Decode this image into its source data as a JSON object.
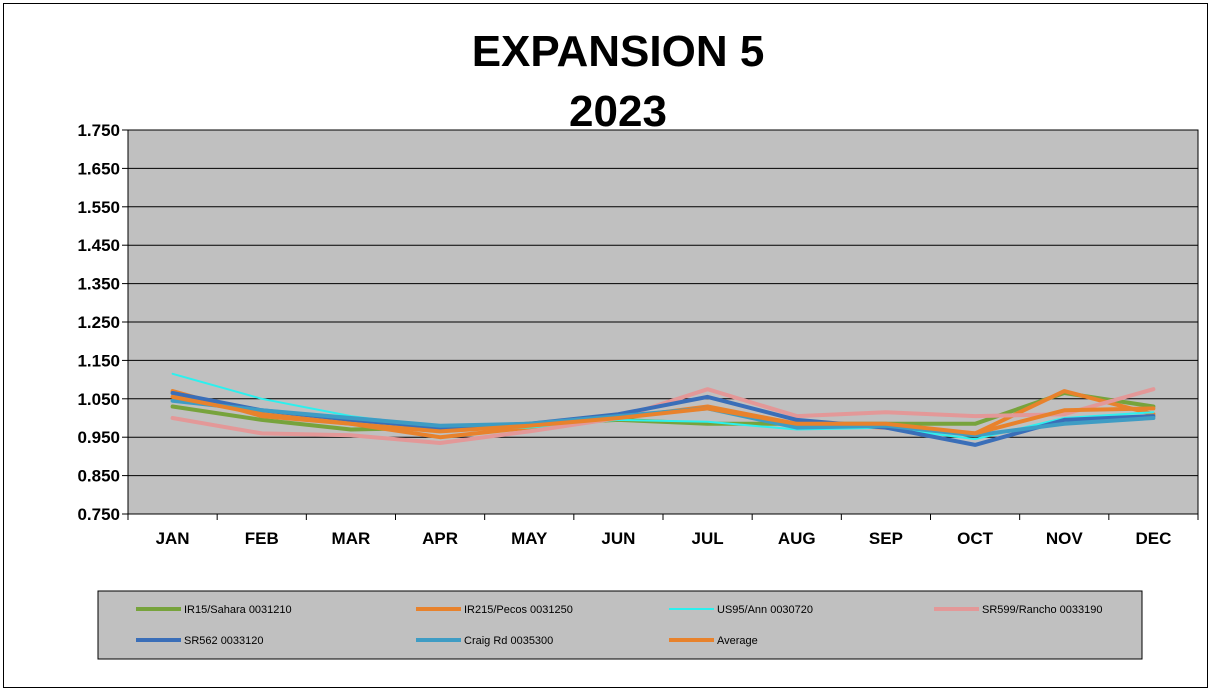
{
  "chart_data": {
    "type": "line",
    "title": "EXPANSION 5",
    "subtitle": "2023",
    "xlabel": "",
    "ylabel": "",
    "categories": [
      "JAN",
      "FEB",
      "MAR",
      "APR",
      "MAY",
      "JUN",
      "JUL",
      "AUG",
      "SEP",
      "OCT",
      "NOV",
      "DEC"
    ],
    "ylim": [
      0.75,
      1.75
    ],
    "yticks": [
      "0.750",
      "0.850",
      "0.950",
      "1.050",
      "1.150",
      "1.250",
      "1.350",
      "1.450",
      "1.550",
      "1.650",
      "1.750"
    ],
    "grid": true,
    "legend_position": "bottom",
    "plot_background": "#c0c0c0",
    "series": [
      {
        "name": "IR15/Sahara 0031210",
        "color": "#77a33c",
        "values": [
          1.03,
          0.995,
          0.97,
          0.975,
          0.985,
          0.995,
          0.985,
          0.985,
          0.985,
          0.985,
          1.065,
          1.03
        ]
      },
      {
        "name": "IR215/Pecos 0031250",
        "color": "#e8822c",
        "values": [
          1.07,
          1.005,
          0.985,
          0.95,
          0.975,
          1.0,
          1.03,
          0.985,
          0.975,
          0.96,
          1.07,
          1.01
        ]
      },
      {
        "name": "US95/Ann 0030720",
        "color": "#2cf0ee",
        "values": [
          1.115,
          1.05,
          1.005,
          0.975,
          0.975,
          0.995,
          0.99,
          0.97,
          0.975,
          0.945,
          1.0,
          1.015
        ]
      },
      {
        "name": "SR599/Rancho 0033190",
        "color": "#e39898",
        "values": [
          1.0,
          0.96,
          0.955,
          0.935,
          0.965,
          1.0,
          1.075,
          1.005,
          1.015,
          1.005,
          1.01,
          1.075
        ]
      },
      {
        "name": "SR562 0033120",
        "color": "#3a6eb8",
        "values": [
          1.065,
          1.02,
          0.995,
          0.975,
          0.985,
          1.01,
          1.055,
          0.995,
          0.975,
          0.93,
          0.995,
          1.005
        ]
      },
      {
        "name": "Craig Rd 0035300",
        "color": "#3e9cc4",
        "values": [
          1.045,
          1.02,
          1.0,
          0.98,
          0.985,
          1.005,
          1.025,
          0.975,
          0.98,
          0.955,
          0.985,
          1.0
        ]
      },
      {
        "name": "Average",
        "color": "#e8822c",
        "values": [
          1.055,
          1.01,
          0.985,
          0.965,
          0.98,
          1.0,
          1.025,
          0.985,
          0.985,
          0.96,
          1.02,
          1.025
        ]
      }
    ]
  }
}
